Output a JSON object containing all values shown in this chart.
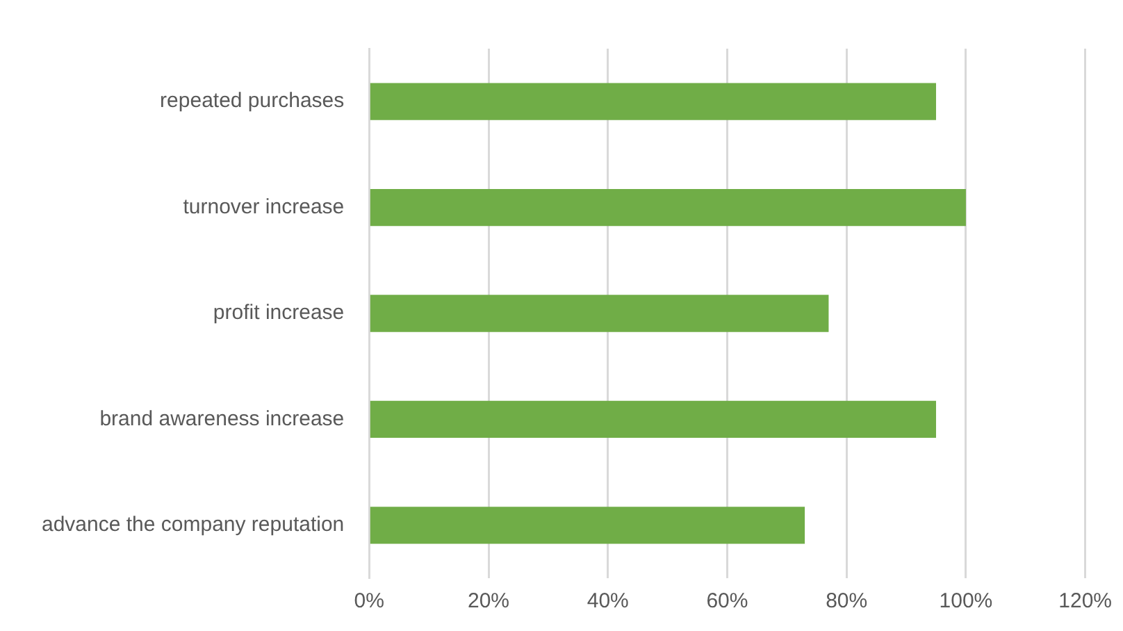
{
  "chart_data": {
    "type": "bar",
    "orientation": "horizontal",
    "categories": [
      "repeated purchases",
      "turnover increase",
      "profit increase",
      "brand awareness increase",
      "advance the company reputation"
    ],
    "values": [
      95,
      100,
      77,
      95,
      73
    ],
    "color": "#70ad47",
    "xlim": [
      0,
      120
    ],
    "xticks": [
      {
        "value": 0,
        "label": "0%"
      },
      {
        "value": 20,
        "label": "20%"
      },
      {
        "value": 40,
        "label": "40%"
      },
      {
        "value": 60,
        "label": "60%"
      },
      {
        "value": 80,
        "label": "80%"
      },
      {
        "value": 100,
        "label": "100%"
      },
      {
        "value": 120,
        "label": "120%"
      }
    ],
    "grid": "x",
    "legend": false
  }
}
